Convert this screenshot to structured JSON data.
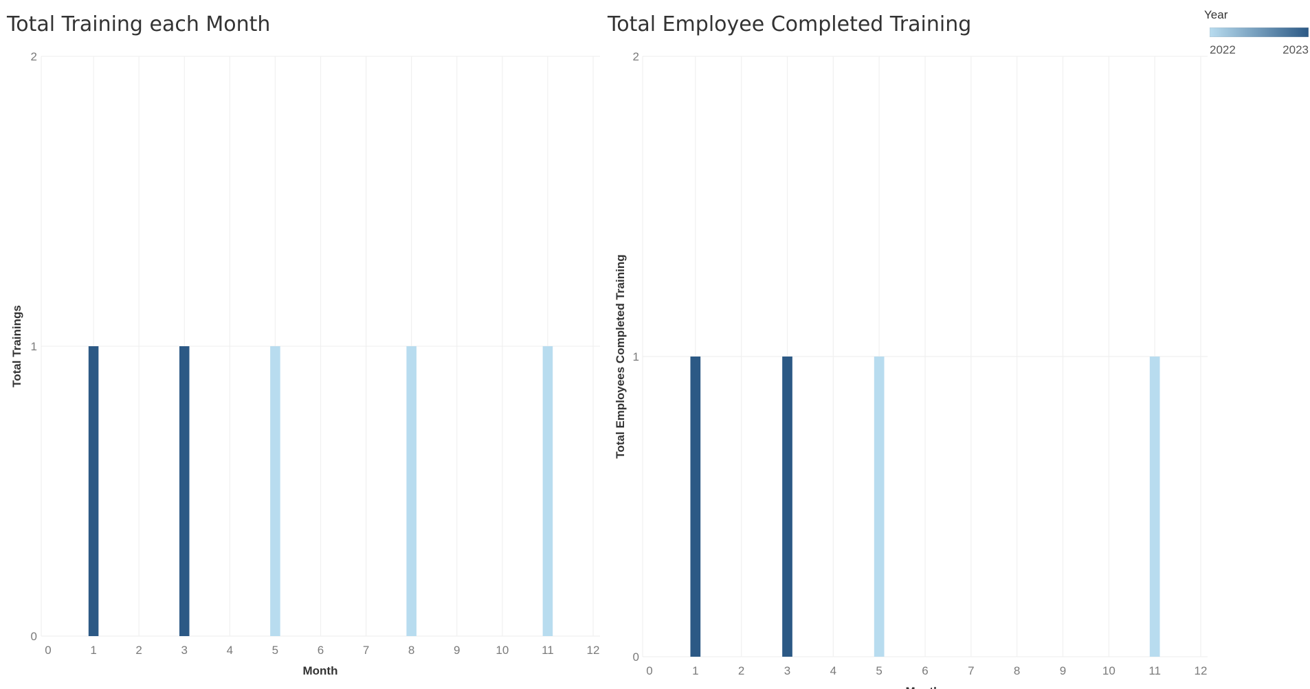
{
  "colors": {
    "year_2022": "#b8dcef",
    "year_2023": "#2c5985",
    "gridline": "#f0f0f0"
  },
  "legend": {
    "title": "Year",
    "min_label": "2022",
    "max_label": "2023"
  },
  "chart_data": [
    {
      "type": "bar",
      "title": "Total Training each Month",
      "xlabel": "Month",
      "ylabel": "Total Trainings",
      "xlim": [
        0,
        12
      ],
      "ylim": [
        0,
        2
      ],
      "xticks": [
        0,
        1,
        2,
        3,
        4,
        5,
        6,
        7,
        8,
        9,
        10,
        11,
        12
      ],
      "yticks": [
        0,
        1,
        2
      ],
      "grid": true,
      "color_by": "Year",
      "points": [
        {
          "month": 1,
          "value": 1,
          "year": 2023
        },
        {
          "month": 3,
          "value": 1,
          "year": 2023
        },
        {
          "month": 5,
          "value": 1,
          "year": 2022
        },
        {
          "month": 8,
          "value": 1,
          "year": 2022
        },
        {
          "month": 11,
          "value": 1,
          "year": 2022
        }
      ]
    },
    {
      "type": "bar",
      "title": "Total Employee Completed Training",
      "xlabel": "Month",
      "ylabel": "Total Employees Completed Training",
      "xlim": [
        0,
        12
      ],
      "ylim": [
        0,
        2
      ],
      "xticks": [
        0,
        1,
        2,
        3,
        4,
        5,
        6,
        7,
        8,
        9,
        10,
        11,
        12
      ],
      "yticks": [
        0,
        1,
        2
      ],
      "grid": true,
      "color_by": "Year",
      "points": [
        {
          "month": 1,
          "value": 1,
          "year": 2023
        },
        {
          "month": 3,
          "value": 1,
          "year": 2023
        },
        {
          "month": 5,
          "value": 1,
          "year": 2022
        },
        {
          "month": 11,
          "value": 1,
          "year": 2022
        }
      ]
    }
  ]
}
